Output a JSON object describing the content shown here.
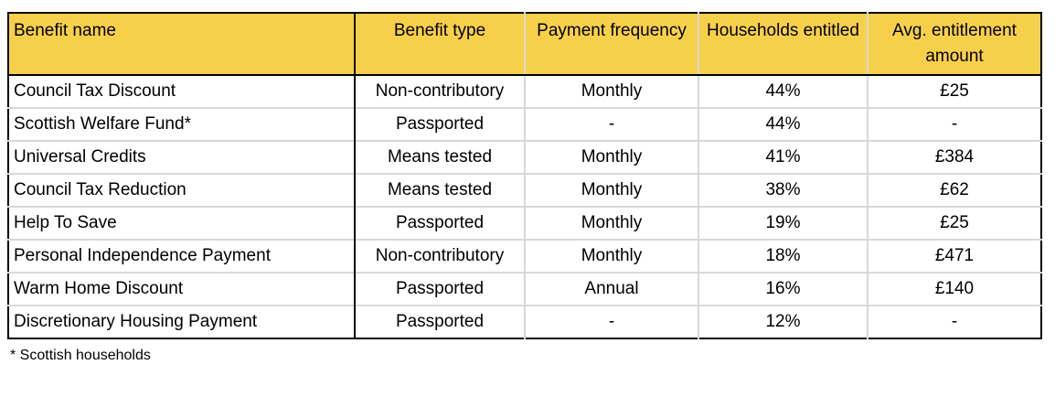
{
  "colors": {
    "header_bg": "#F7D04B",
    "grid_line": "#D8D8D8",
    "border": "#000000",
    "text": "#000000"
  },
  "table": {
    "columns": [
      {
        "label": "Benefit name",
        "align": "left"
      },
      {
        "label": "Benefit type",
        "align": "center"
      },
      {
        "label": "Payment frequency",
        "align": "center"
      },
      {
        "label": "Households entitled",
        "align": "center"
      },
      {
        "label": "Avg. entitlement amount",
        "align": "center"
      }
    ],
    "rows": [
      [
        "Council Tax Discount",
        "Non-contributory",
        "Monthly",
        "44%",
        "£25"
      ],
      [
        "Scottish Welfare Fund*",
        "Passported",
        "-",
        "44%",
        "-"
      ],
      [
        "Universal Credits",
        "Means tested",
        "Monthly",
        "41%",
        "£384"
      ],
      [
        "Council Tax Reduction",
        "Means tested",
        "Monthly",
        "38%",
        "£62"
      ],
      [
        "Help To Save",
        "Passported",
        "Monthly",
        "19%",
        "£25"
      ],
      [
        "Personal Independence Payment",
        "Non-contributory",
        "Monthly",
        "18%",
        "£471"
      ],
      [
        "Warm Home Discount",
        "Passported",
        "Annual",
        "16%",
        "£140"
      ],
      [
        "Discretionary Housing Payment",
        "Passported",
        "-",
        "12%",
        "-"
      ]
    ]
  },
  "footnote": "* Scottish households",
  "chart_data": {
    "type": "table",
    "title": "",
    "columns": [
      "Benefit name",
      "Benefit type",
      "Payment frequency",
      "Households entitled",
      "Avg. entitlement amount"
    ],
    "rows": [
      [
        "Council Tax Discount",
        "Non-contributory",
        "Monthly",
        "44%",
        "£25"
      ],
      [
        "Scottish Welfare Fund*",
        "Passported",
        "-",
        "44%",
        "-"
      ],
      [
        "Universal Credits",
        "Means tested",
        "Monthly",
        "41%",
        "£384"
      ],
      [
        "Council Tax Reduction",
        "Means tested",
        "Monthly",
        "38%",
        "£62"
      ],
      [
        "Help To Save",
        "Passported",
        "Monthly",
        "19%",
        "£25"
      ],
      [
        "Personal Independence Payment",
        "Non-contributory",
        "Monthly",
        "18%",
        "£471"
      ],
      [
        "Warm Home Discount",
        "Passported",
        "Annual",
        "16%",
        "£140"
      ],
      [
        "Discretionary Housing Payment",
        "Passported",
        "-",
        "12%",
        "-"
      ]
    ],
    "footnote": "* Scottish households",
    "households_entitled_pct": {
      "Council Tax Discount": 44,
      "Scottish Welfare Fund": 44,
      "Universal Credits": 41,
      "Council Tax Reduction": 38,
      "Help To Save": 19,
      "Personal Independence Payment": 18,
      "Warm Home Discount": 16,
      "Discretionary Housing Payment": 12
    },
    "avg_entitlement_gbp": {
      "Council Tax Discount": 25,
      "Scottish Welfare Fund": null,
      "Universal Credits": 384,
      "Council Tax Reduction": 62,
      "Help To Save": 25,
      "Personal Independence Payment": 471,
      "Warm Home Discount": 140,
      "Discretionary Housing Payment": null
    }
  }
}
